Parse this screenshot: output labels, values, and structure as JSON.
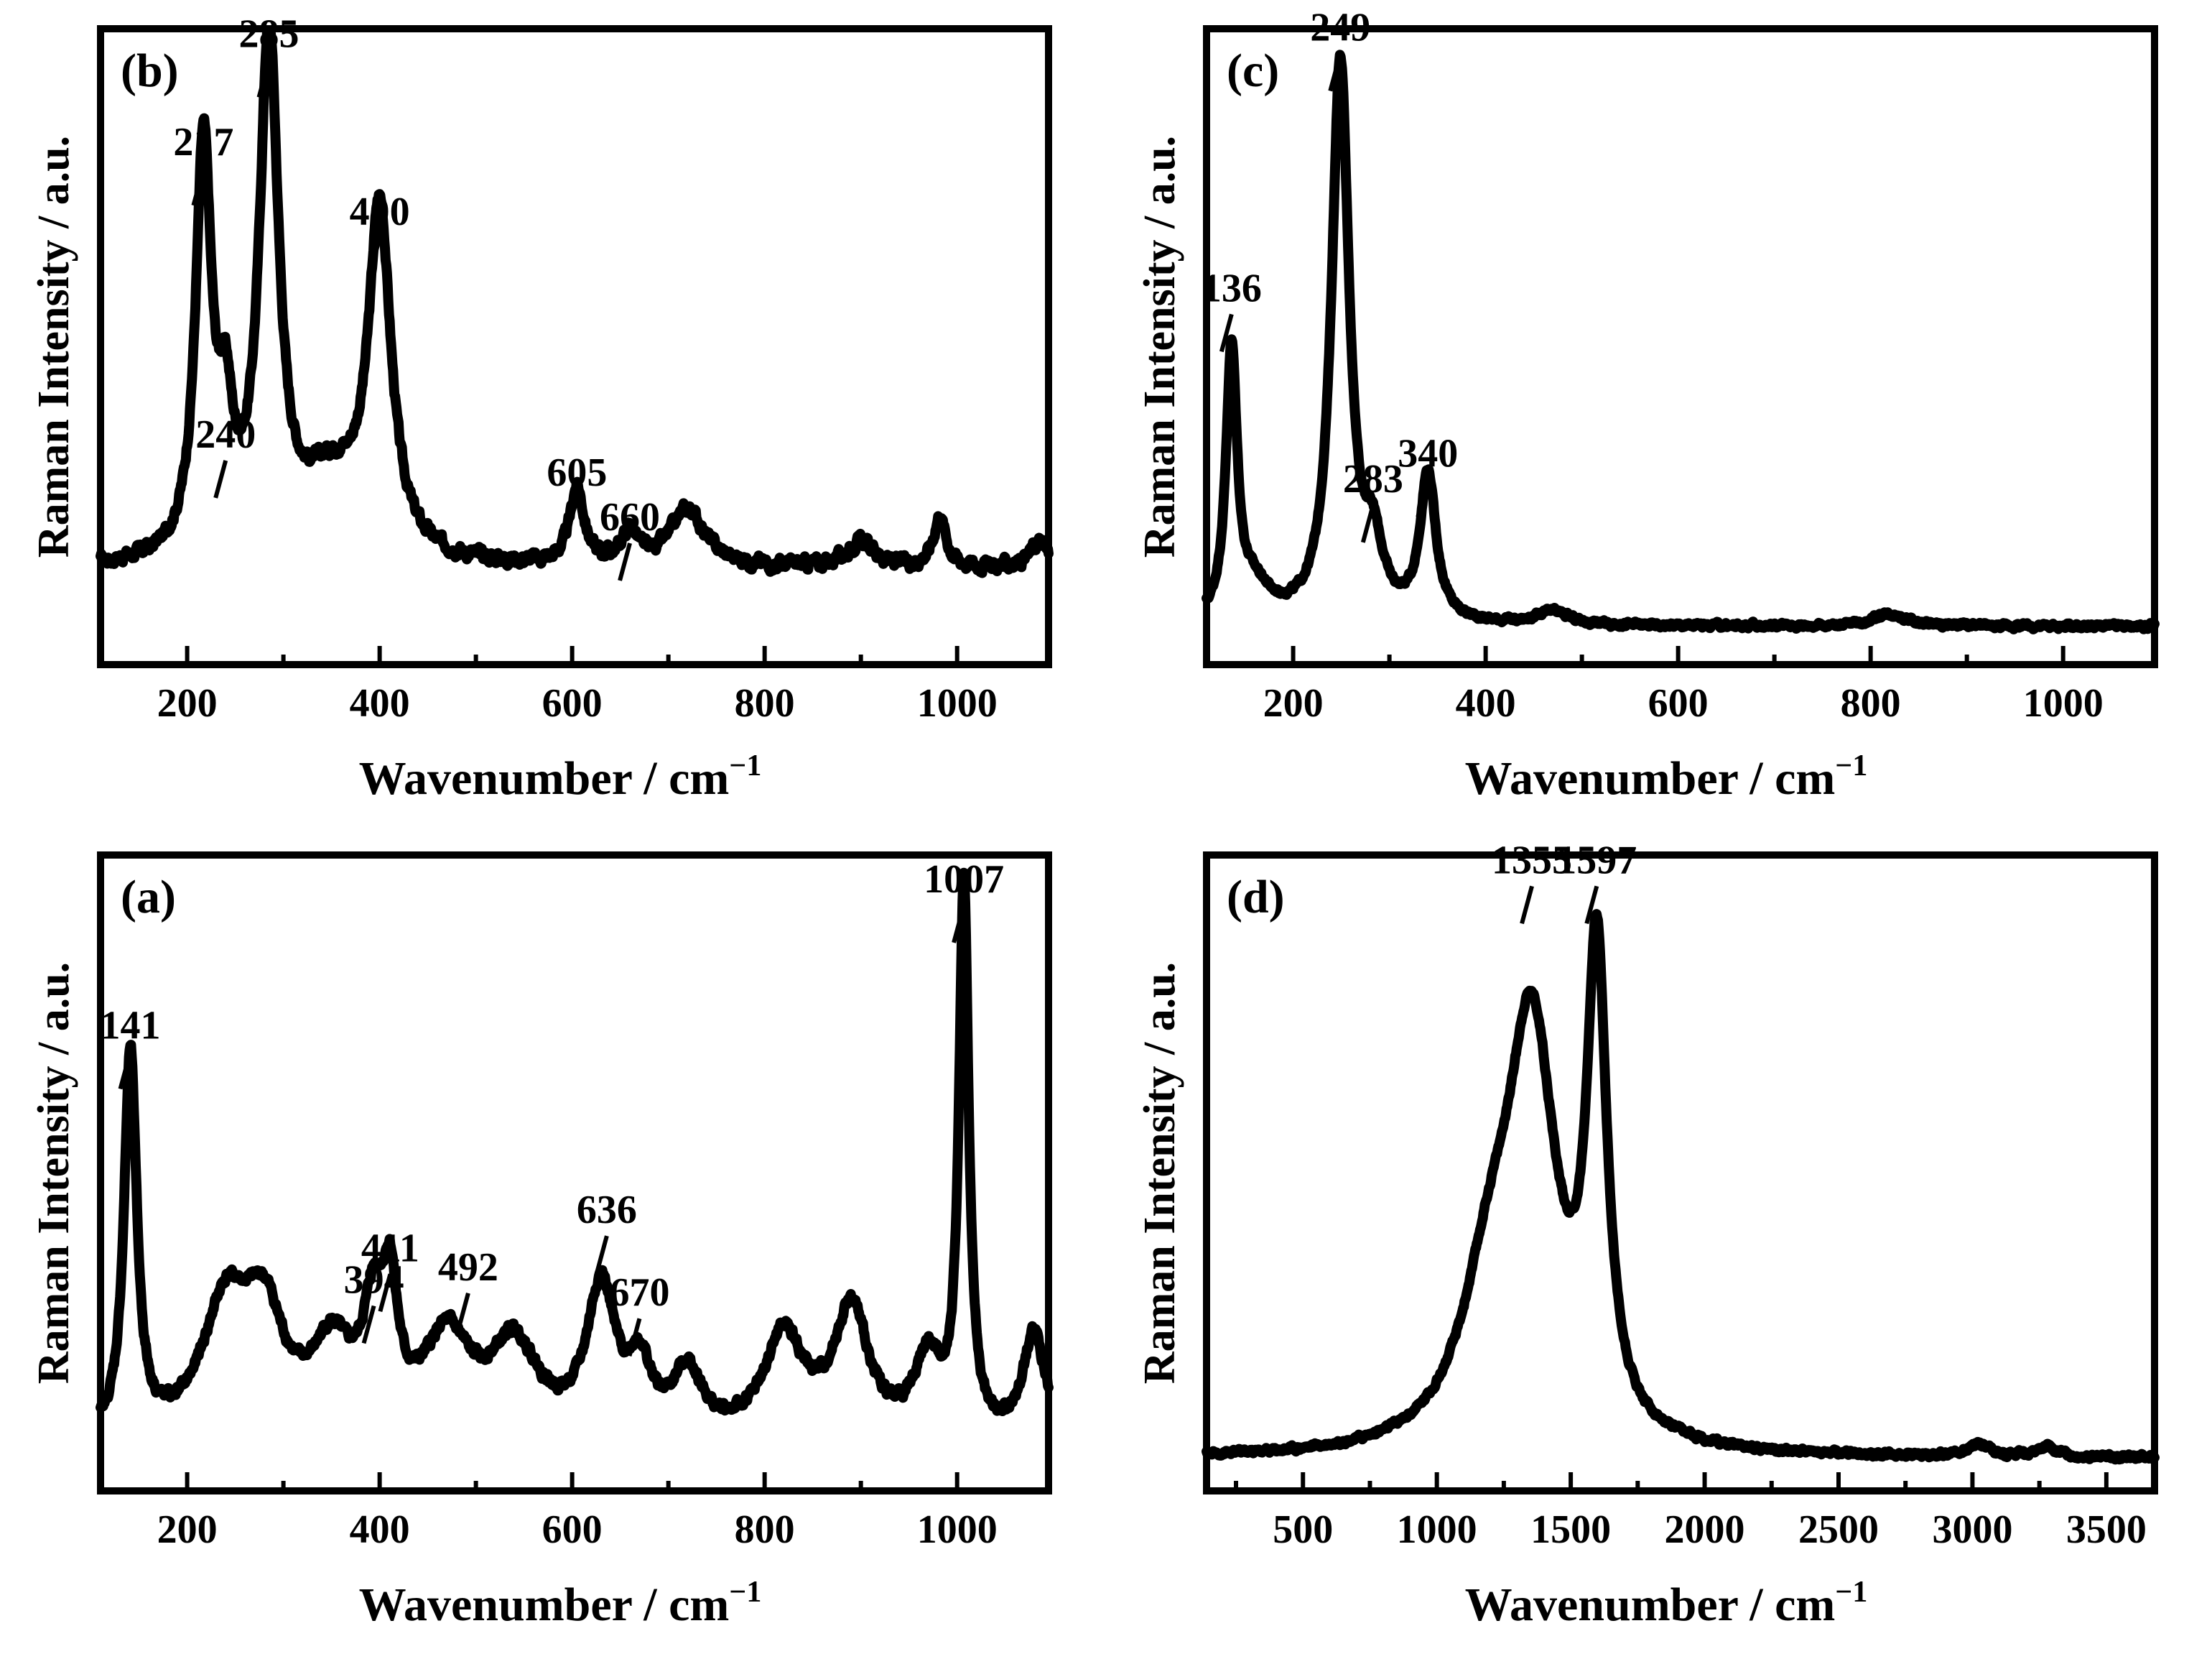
{
  "chart_data": [
    {
      "id": "b",
      "type": "line",
      "panel_label": "(b)",
      "xlabel": "Wavenumber / cm",
      "xlabel_sup": "−1",
      "ylabel": "Raman Intensity / a.u.",
      "xlim": [
        110,
        1095
      ],
      "ylim": [
        0,
        1
      ],
      "x_ticks": [
        200,
        400,
        600,
        800,
        1000
      ],
      "x_tick_labels": [
        "200",
        "400",
        "600",
        "800",
        "1000"
      ],
      "baseline": 0.15,
      "noise_amp": 0.018,
      "peaks": [
        [
          217,
          0.64,
          10
        ],
        [
          240,
          0.18,
          9
        ],
        [
          285,
          0.81,
          12
        ],
        [
          400,
          0.53,
          14
        ],
        [
          350,
          0.12,
          40
        ],
        [
          605,
          0.12,
          9
        ],
        [
          660,
          0.05,
          10
        ],
        [
          720,
          0.09,
          22
        ],
        [
          900,
          0.04,
          18
        ],
        [
          982,
          0.08,
          8
        ],
        [
          1085,
          0.04,
          12
        ]
      ],
      "annotations": [
        {
          "text": "217",
          "x": 217,
          "y": 0.79
        },
        {
          "text": "240",
          "x": 240,
          "y": 0.33
        },
        {
          "text": "285",
          "x": 285,
          "y": 0.96
        },
        {
          "text": "400",
          "x": 400,
          "y": 0.68
        },
        {
          "text": "605",
          "x": 605,
          "y": 0.27
        },
        {
          "text": "660",
          "x": 660,
          "y": 0.2
        }
      ]
    },
    {
      "id": "c",
      "type": "line",
      "panel_label": "(c)",
      "xlabel": "Wavenumber / cm",
      "xlabel_sup": "−1",
      "ylabel": "Raman Intensity / a.u.",
      "xlim": [
        110,
        1095
      ],
      "ylim": [
        0,
        1
      ],
      "x_ticks": [
        200,
        400,
        600,
        800,
        1000
      ],
      "x_tick_labels": [
        "200",
        "400",
        "600",
        "800",
        "1000"
      ],
      "baseline": 0.06,
      "noise_amp": 0.008,
      "peaks": [
        [
          136,
          0.42,
          7
        ],
        [
          160,
          0.05,
          20
        ],
        [
          249,
          0.88,
          11
        ],
        [
          283,
          0.1,
          12
        ],
        [
          340,
          0.23,
          10
        ],
        [
          470,
          0.02,
          20
        ],
        [
          820,
          0.02,
          20
        ]
      ],
      "annotations": [
        {
          "text": "136",
          "x": 136,
          "y": 0.56
        },
        {
          "text": "249",
          "x": 249,
          "y": 0.97
        },
        {
          "text": "283",
          "x": 283,
          "y": 0.26
        },
        {
          "text": "340",
          "x": 340,
          "y": 0.3
        }
      ]
    },
    {
      "id": "a",
      "type": "line",
      "panel_label": "(a)",
      "xlabel": "Wavenumber / cm",
      "xlabel_sup": "−1",
      "ylabel": "Raman Intensity / a.u.",
      "xlim": [
        110,
        1095
      ],
      "ylim": [
        0,
        1
      ],
      "x_ticks": [
        200,
        400,
        600,
        800,
        1000
      ],
      "x_tick_labels": [
        "200",
        "400",
        "600",
        "800",
        "1000"
      ],
      "baseline": 0.07,
      "noise_amp": 0.015,
      "peaks": [
        [
          141,
          0.6,
          8
        ],
        [
          240,
          0.2,
          30
        ],
        [
          280,
          0.17,
          25
        ],
        [
          350,
          0.13,
          25
        ],
        [
          394,
          0.17,
          14
        ],
        [
          411,
          0.18,
          9
        ],
        [
          470,
          0.15,
          30
        ],
        [
          540,
          0.14,
          30
        ],
        [
          630,
          0.23,
          18
        ],
        [
          670,
          0.1,
          14
        ],
        [
          720,
          0.1,
          18
        ],
        [
          820,
          0.16,
          25
        ],
        [
          890,
          0.2,
          22
        ],
        [
          970,
          0.12,
          18
        ],
        [
          1007,
          0.86,
          6
        ],
        [
          1080,
          0.17,
          14
        ]
      ],
      "annotations": [
        {
          "text": "141",
          "x": 141,
          "y": 0.7
        },
        {
          "text": "394",
          "x": 394,
          "y": 0.3
        },
        {
          "text": "411",
          "x": 411,
          "y": 0.35
        },
        {
          "text": "492",
          "x": 492,
          "y": 0.32
        },
        {
          "text": "636",
          "x": 636,
          "y": 0.41
        },
        {
          "text": "670",
          "x": 670,
          "y": 0.28
        },
        {
          "text": "1007",
          "x": 1007,
          "y": 0.93
        }
      ]
    },
    {
      "id": "d",
      "type": "line",
      "panel_label": "(d)",
      "xlabel": "Wavenumber / cm",
      "xlabel_sup": "−1",
      "ylabel": "Raman Intensity / a.u.",
      "xlim": [
        140,
        3680
      ],
      "ylim": [
        0,
        1
      ],
      "x_ticks": [
        500,
        1000,
        1500,
        2000,
        2500,
        3000,
        3500
      ],
      "x_tick_labels": [
        "500",
        "1000",
        "1500",
        "2000",
        "2500",
        "3000",
        "3500"
      ],
      "baseline": 0.05,
      "noise_amp": 0.008,
      "peaks": [
        [
          1200,
          0.22,
          130
        ],
        [
          1355,
          0.62,
          110
        ],
        [
          1597,
          0.73,
          45
        ],
        [
          3020,
          0.02,
          50
        ],
        [
          3280,
          0.015,
          50
        ]
      ],
      "annotations": [
        {
          "text": "1355",
          "x": 1355,
          "y": 0.96
        },
        {
          "text": "1597",
          "x": 1597,
          "y": 0.96
        }
      ]
    }
  ]
}
